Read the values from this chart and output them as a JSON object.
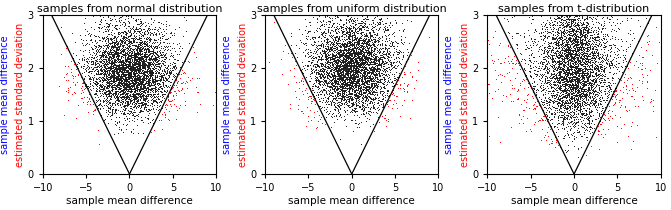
{
  "titles": [
    "samples from normal distribution",
    "samples from uniform distribution",
    "samples from t-distribution"
  ],
  "xlabel": "sample mean difference",
  "ylabel_line1": "sample mean difference",
  "ylabel_line2": "estimated standard deviation",
  "ylabel_color1": "#0000ff",
  "ylabel_color2": "#ff0000",
  "xlim": [
    -10,
    10
  ],
  "ylim": [
    0.0,
    3.0
  ],
  "xticks": [
    -10,
    -5,
    0,
    5,
    10
  ],
  "yticks": [
    0.0,
    1.0,
    2.0,
    3.0
  ],
  "v_slope": 3.0,
  "bg_color": "#ffffff",
  "dot_color_black": "#1a1a1a",
  "dot_color_red": "#ff0000",
  "dot_size": 0.5,
  "n_points": 5000,
  "seeds": [
    42,
    123,
    7
  ],
  "title_fontsize": 8,
  "label_fontsize": 7.5,
  "tick_fontsize": 7
}
